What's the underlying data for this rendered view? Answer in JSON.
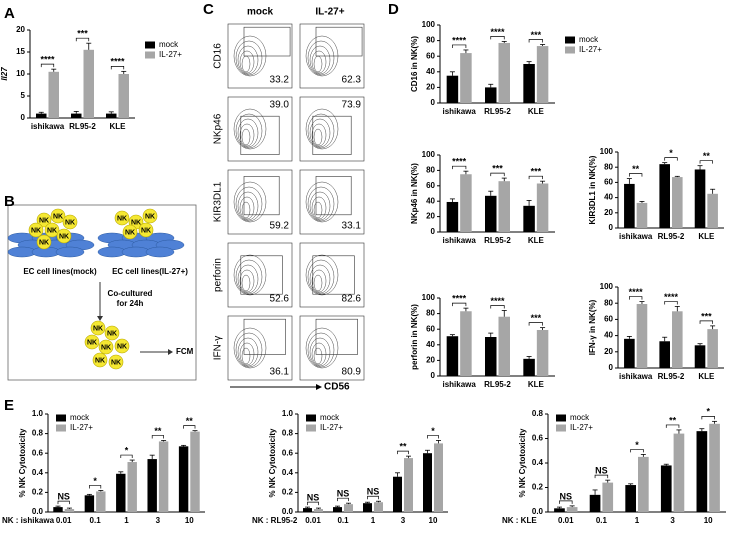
{
  "panel_labels": [
    "A",
    "B",
    "C",
    "D",
    "E"
  ],
  "diagram": {
    "nk_label": "NK",
    "left_label": "EC cell lines(mock)",
    "right_label": "EC cell lines(IL-27+)",
    "step": [
      "Co-cultured",
      "for 24h"
    ],
    "output": "FCM"
  },
  "flow": {
    "columns": [
      "mock",
      "IL-27+"
    ],
    "x_label": "CD56",
    "rows": [
      {
        "marker": "CD16",
        "values": [
          "33.2",
          "62.3"
        ]
      },
      {
        "marker": "NKp46",
        "values": [
          "39.0",
          "73.9"
        ]
      },
      {
        "marker": "KIR3DL1",
        "values": [
          "59.2",
          "33.1"
        ]
      },
      {
        "marker": "perforin",
        "values": [
          "52.6",
          "82.6"
        ]
      },
      {
        "marker": "IFN-γ",
        "values": [
          "36.1",
          "80.9"
        ]
      }
    ]
  },
  "chart_data": [
    {
      "type": "bar",
      "y_label": "Il27",
      "categories": [
        "ishikawa",
        "RL95-2",
        "KLE"
      ],
      "ylim": [
        0,
        20
      ],
      "yticks": [
        0,
        5,
        10,
        15,
        20
      ],
      "legend": "right",
      "series": [
        {
          "name": "mock",
          "color": "#000000",
          "values": [
            1,
            1,
            1
          ],
          "errors": [
            0.3,
            0.5,
            0.4
          ]
        },
        {
          "name": "IL-27+",
          "color": "#a6a6a6",
          "values": [
            10.5,
            15.5,
            10
          ],
          "errors": [
            0.6,
            1.5,
            0.6
          ]
        }
      ],
      "annotations": [
        "****",
        "***",
        "****"
      ]
    },
    {
      "type": "bar",
      "y_label": "CD16 in NK(%)",
      "categories": [
        "ishikawa",
        "RL95-2",
        "KLE"
      ],
      "ylim": [
        0,
        100
      ],
      "yticks": [
        0,
        20,
        40,
        60,
        80,
        100
      ],
      "legend": "right",
      "series": [
        {
          "name": "mock",
          "color": "#000000",
          "values": [
            35,
            20,
            50
          ],
          "errors": [
            5,
            4,
            3
          ]
        },
        {
          "name": "IL-27+",
          "color": "#a6a6a6",
          "values": [
            64,
            77,
            73
          ],
          "errors": [
            4,
            2,
            2
          ]
        }
      ],
      "annotations": [
        "****",
        "****",
        "***"
      ]
    },
    {
      "type": "bar",
      "y_label": "NKp46 in NK(%)",
      "categories": [
        "ishikawa",
        "RL95-2",
        "KLE"
      ],
      "ylim": [
        0,
        100
      ],
      "yticks": [
        0,
        20,
        40,
        60,
        80,
        100
      ],
      "series": [
        {
          "name": "mock",
          "color": "#000000",
          "values": [
            39,
            47,
            34
          ],
          "errors": [
            4,
            6,
            7
          ]
        },
        {
          "name": "IL-27+",
          "color": "#a6a6a6",
          "values": [
            75,
            66,
            63
          ],
          "errors": [
            4,
            4,
            3
          ]
        }
      ],
      "annotations": [
        "****",
        "***",
        "***"
      ]
    },
    {
      "type": "bar",
      "y_label": "KIR3DL1 in NK(%)",
      "categories": [
        "ishikawa",
        "RL95-2",
        "KLE"
      ],
      "ylim": [
        0,
        100
      ],
      "yticks": [
        0,
        20,
        40,
        60,
        80,
        100
      ],
      "series": [
        {
          "name": "mock",
          "color": "#000000",
          "values": [
            58,
            84,
            77
          ],
          "errors": [
            7,
            2,
            5
          ]
        },
        {
          "name": "IL-27+",
          "color": "#a6a6a6",
          "values": [
            33,
            67,
            45
          ],
          "errors": [
            2,
            1,
            6
          ]
        }
      ],
      "annotations": [
        "**",
        "*",
        "**"
      ]
    },
    {
      "type": "bar",
      "y_label": "perforin in NK(%)",
      "categories": [
        "ishikawa",
        "RL95-2",
        "KLE"
      ],
      "ylim": [
        0,
        100
      ],
      "yticks": [
        0,
        20,
        40,
        60,
        80,
        100
      ],
      "series": [
        {
          "name": "mock",
          "color": "#000000",
          "values": [
            51,
            50,
            22
          ],
          "errors": [
            2,
            5,
            3
          ]
        },
        {
          "name": "IL-27+",
          "color": "#a6a6a6",
          "values": [
            83,
            76,
            59
          ],
          "errors": [
            4,
            8,
            3
          ]
        }
      ],
      "annotations": [
        "****",
        "****",
        "***"
      ]
    },
    {
      "type": "bar",
      "y_label": "IFN-γ in NK(%)",
      "categories": [
        "ishikawa",
        "RL95-2",
        "KLE"
      ],
      "ylim": [
        0,
        100
      ],
      "yticks": [
        0,
        20,
        40,
        60,
        80,
        100
      ],
      "series": [
        {
          "name": "mock",
          "color": "#000000",
          "values": [
            36,
            33,
            28
          ],
          "errors": [
            3,
            5,
            2
          ]
        },
        {
          "name": "IL-27+",
          "color": "#a6a6a6",
          "values": [
            79,
            70,
            48
          ],
          "errors": [
            3,
            6,
            4
          ]
        }
      ],
      "annotations": [
        "****",
        "****",
        "***"
      ]
    },
    {
      "type": "bar",
      "y_label": "% NK Cytotoxicity",
      "x_label": "NK : ishikawa",
      "categories": [
        "0.01",
        "0.1",
        "1",
        "3",
        "10"
      ],
      "ylim": [
        0,
        1
      ],
      "yticks": [
        {
          "value": 0,
          "label": "0.0"
        },
        0.2,
        0.4,
        0.6,
        0.8,
        {
          "value": 1,
          "label": "1.0"
        }
      ],
      "legend": "upper left",
      "series": [
        {
          "name": "mock",
          "color": "#000000",
          "values": [
            0.05,
            0.17,
            0.39,
            0.54,
            0.67
          ],
          "errors": [
            0.01,
            0.01,
            0.02,
            0.04,
            0.01
          ]
        },
        {
          "name": "IL-27+",
          "color": "#a6a6a6",
          "values": [
            0.03,
            0.21,
            0.51,
            0.72,
            0.82
          ],
          "errors": [
            0.01,
            0.01,
            0.02,
            0.01,
            0.01
          ]
        }
      ],
      "annotations": [
        "NS",
        "*",
        "*",
        "**",
        "**"
      ]
    },
    {
      "type": "bar",
      "y_label": "% NK Cytotoxicity",
      "x_label": "NK : RL95-2",
      "categories": [
        "0.01",
        "0.1",
        "1",
        "3",
        "10"
      ],
      "ylim": [
        0,
        1
      ],
      "yticks": [
        {
          "value": 0,
          "label": "0.0"
        },
        0.2,
        0.4,
        0.6,
        0.8,
        {
          "value": 1,
          "label": "1.0"
        }
      ],
      "legend": "upper left",
      "series": [
        {
          "name": "mock",
          "color": "#000000",
          "values": [
            0.04,
            0.05,
            0.09,
            0.36,
            0.6
          ],
          "errors": [
            0.01,
            0.01,
            0.01,
            0.04,
            0.03
          ]
        },
        {
          "name": "IL-27+",
          "color": "#a6a6a6",
          "values": [
            0.03,
            0.08,
            0.1,
            0.55,
            0.7
          ],
          "errors": [
            0.01,
            0.01,
            0.01,
            0.02,
            0.03
          ]
        }
      ],
      "annotations": [
        "NS",
        "NS",
        "NS",
        "**",
        "*"
      ]
    },
    {
      "type": "bar",
      "y_label": "% NK Cytotoxicity",
      "x_label": "NK : KLE",
      "categories": [
        "0.01",
        "0.1",
        "1",
        "3",
        "10"
      ],
      "ylim": [
        0,
        0.8
      ],
      "yticks": [
        {
          "value": 0,
          "label": "0.0"
        },
        0.2,
        0.4,
        0.6,
        0.8
      ],
      "legend": "upper left",
      "series": [
        {
          "name": "mock",
          "color": "#000000",
          "values": [
            0.03,
            0.14,
            0.22,
            0.38,
            0.66
          ],
          "errors": [
            0.01,
            0.04,
            0.01,
            0.01,
            0.02
          ]
        },
        {
          "name": "IL-27+",
          "color": "#a6a6a6",
          "values": [
            0.04,
            0.24,
            0.45,
            0.64,
            0.72
          ],
          "errors": [
            0.01,
            0.02,
            0.02,
            0.03,
            0.02
          ]
        }
      ],
      "annotations": [
        "NS",
        "NS",
        "*",
        "**",
        "*"
      ]
    }
  ]
}
